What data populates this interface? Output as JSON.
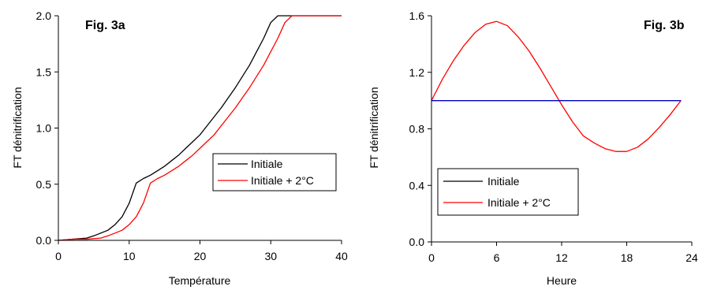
{
  "chart_data": [
    {
      "type": "line",
      "title": "Fig. 3a",
      "xlabel": "Température",
      "ylabel": "FT dénitrification",
      "xlim": [
        0,
        40
      ],
      "ylim": [
        0,
        2.0
      ],
      "xticks": [
        "0",
        "10",
        "20",
        "30",
        "40"
      ],
      "yticks": [
        "0.0",
        "0.5",
        "1.0",
        "1.5",
        "2.0"
      ],
      "legend_position": "right",
      "series": [
        {
          "name": "Initiale",
          "color": "#000000",
          "x": [
            0,
            2,
            4,
            5,
            7,
            8,
            9,
            10,
            11,
            12,
            13,
            14,
            15,
            16,
            17,
            18,
            19,
            20,
            21,
            22,
            23,
            24,
            25,
            26,
            27,
            28,
            29,
            30,
            31,
            32,
            34,
            36,
            38,
            40
          ],
          "y": [
            0,
            0.01,
            0.02,
            0.04,
            0.09,
            0.14,
            0.21,
            0.33,
            0.51,
            0.55,
            0.58,
            0.62,
            0.66,
            0.71,
            0.76,
            0.82,
            0.88,
            0.94,
            1.02,
            1.1,
            1.18,
            1.27,
            1.36,
            1.46,
            1.56,
            1.68,
            1.8,
            1.94,
            2.0,
            2.0,
            2.0,
            2.0,
            2.0,
            2.0
          ]
        },
        {
          "name": "Initiale + 2°C",
          "color": "#ff0000",
          "x": [
            0,
            2,
            4,
            6,
            7,
            9,
            10,
            11,
            12,
            13,
            14,
            15,
            16,
            17,
            18,
            19,
            20,
            21,
            22,
            23,
            24,
            25,
            26,
            27,
            28,
            29,
            30,
            31,
            32,
            33,
            34,
            36,
            38,
            40
          ],
          "y": [
            0,
            0.01,
            0.01,
            0.02,
            0.04,
            0.09,
            0.14,
            0.21,
            0.33,
            0.51,
            0.55,
            0.58,
            0.62,
            0.66,
            0.71,
            0.76,
            0.82,
            0.88,
            0.94,
            1.02,
            1.1,
            1.18,
            1.27,
            1.36,
            1.46,
            1.56,
            1.68,
            1.8,
            1.94,
            2.0,
            2.0,
            2.0,
            2.0,
            2.0
          ]
        }
      ]
    },
    {
      "type": "line",
      "title": "Fig. 3b",
      "xlabel": "Heure",
      "ylabel": "FT dénitrification",
      "xlim": [
        0,
        24
      ],
      "ylim": [
        0,
        1.6
      ],
      "xticks": [
        "0",
        "6",
        "12",
        "18",
        "24"
      ],
      "yticks": [
        "0.0",
        "0.4",
        "0.8",
        "1.2",
        "1.6"
      ],
      "legend_position": "bottom-left",
      "series": [
        {
          "name": "Initiale",
          "color": "#000000",
          "x": [
            0,
            23
          ],
          "y": [
            1.0,
            1.0
          ]
        },
        {
          "name": "Initiale + 2°C",
          "color": "#ff0000",
          "x": [
            0,
            1,
            2,
            3,
            4,
            5,
            6,
            7,
            8,
            9,
            10,
            11,
            12,
            13,
            14,
            15,
            16,
            17,
            18,
            19,
            20,
            21,
            22,
            23
          ],
          "y": [
            1.0,
            1.15,
            1.28,
            1.39,
            1.48,
            1.54,
            1.56,
            1.53,
            1.45,
            1.35,
            1.23,
            1.1,
            0.97,
            0.85,
            0.75,
            0.7,
            0.66,
            0.64,
            0.64,
            0.67,
            0.73,
            0.81,
            0.9,
            1.0
          ]
        },
        {
          "name": "",
          "color": "#0000cc",
          "x": [
            0,
            23
          ],
          "y": [
            1.0,
            1.0
          ]
        }
      ]
    }
  ]
}
